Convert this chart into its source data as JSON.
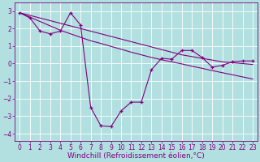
{
  "background_color": "#b2e0e0",
  "grid_color": "#ffffff",
  "line_color": "#800080",
  "xlabel": "Windchill (Refroidissement éolien,°C)",
  "xlabel_fontsize": 6.5,
  "tick_fontsize": 5.5,
  "xlim": [
    -0.5,
    23.5
  ],
  "ylim": [
    -4.4,
    3.5
  ],
  "yticks": [
    -4,
    -3,
    -2,
    -1,
    0,
    1,
    2,
    3
  ],
  "xticks": [
    0,
    1,
    2,
    3,
    4,
    5,
    6,
    7,
    8,
    9,
    10,
    11,
    12,
    13,
    14,
    15,
    16,
    17,
    18,
    19,
    20,
    21,
    22,
    23
  ],
  "series1_x": [
    0,
    1,
    2,
    3,
    4,
    5,
    6,
    7,
    8,
    9,
    10,
    11,
    12,
    13,
    14,
    15,
    16,
    17,
    18,
    19,
    20,
    21,
    22,
    23
  ],
  "series1_y": [
    2.9,
    2.65,
    2.4,
    2.15,
    1.9,
    1.7,
    1.5,
    1.3,
    1.15,
    0.98,
    0.82,
    0.65,
    0.5,
    0.35,
    0.22,
    0.1,
    -0.02,
    -0.15,
    -0.27,
    -0.4,
    -0.52,
    -0.64,
    -0.76,
    -0.88
  ],
  "series2_x": [
    0,
    1,
    2,
    3,
    4,
    5,
    6,
    7,
    8,
    9,
    10,
    11,
    12,
    13,
    14,
    15,
    16,
    17,
    18,
    19,
    20,
    21,
    22,
    23
  ],
  "series2_y": [
    2.9,
    2.75,
    2.6,
    2.45,
    2.3,
    2.15,
    2.0,
    1.85,
    1.7,
    1.55,
    1.4,
    1.25,
    1.1,
    0.95,
    0.8,
    0.65,
    0.5,
    0.4,
    0.3,
    0.2,
    0.1,
    0.05,
    0.0,
    -0.05
  ],
  "series3_x": [
    0,
    1,
    2,
    3,
    4,
    5,
    6,
    7,
    8,
    9,
    10,
    11,
    12,
    13,
    14,
    15,
    16,
    17,
    18,
    19,
    20,
    21,
    22,
    23
  ],
  "series3_y": [
    2.9,
    2.6,
    1.85,
    1.7,
    1.85,
    2.9,
    2.2,
    -2.5,
    -3.55,
    -3.6,
    -2.7,
    -2.2,
    -2.2,
    -0.35,
    0.3,
    0.25,
    0.75,
    0.75,
    0.35,
    -0.2,
    -0.1,
    0.1,
    0.15,
    0.15
  ]
}
